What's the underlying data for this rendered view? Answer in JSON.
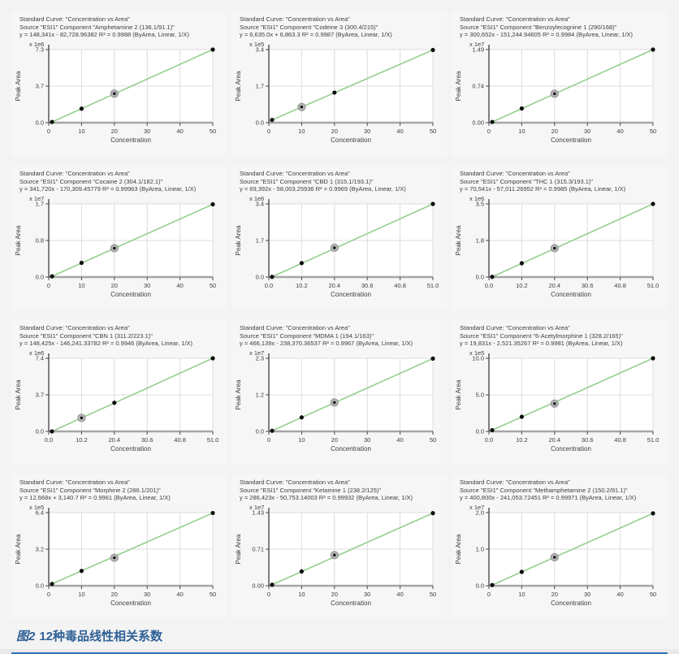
{
  "page": {
    "caption_prefix": "图2",
    "caption_text": "12种毒品线性相关系数",
    "caption_color": "#2e6096",
    "divider_color": "#2e74b5"
  },
  "common": {
    "title_line": "Standard Curve: \"Concentration vs Area\"",
    "source_prefix": "Source \"ESI1\" Component ",
    "r2_label": "R²",
    "fit_suffix": "(ByArea, Linear, 1/X)",
    "ylabel": "Peak Area",
    "xlabel": "Concentration",
    "line_color": "#94cf8e",
    "point_color": "#0d0d0d",
    "highlight_fill": "#b5b5b5",
    "highlight_stroke": "#8f8f8f",
    "grid_color": "#dcdcdc",
    "axis_color": "#4a4a4a",
    "xaxis_color": "#a6a6a6",
    "tick_text_color": "#3d3d3d"
  },
  "chart_data": {
    "type": "scatter",
    "title": "Standard curves: Concentration vs Peak Area, 12 drug components",
    "xlabel": "Concentration",
    "ylabel": "Peak Area",
    "legend": "none",
    "grid": true,
    "charts": [
      {
        "component": "Amphetamine 2 (136.1/91.1)",
        "equation": "y = 148,341x - 82,728.96382",
        "r2": "0.9988",
        "scale": "x 1e6",
        "y_ticks": [
          "0.0",
          "3.7",
          "7.3"
        ],
        "y_max": 7.3,
        "x_ticks": [
          "0",
          "10",
          "20",
          "30",
          "40",
          "50"
        ],
        "x_max": 50,
        "x": [
          1,
          10,
          20,
          50
        ],
        "y": [
          0.07,
          1.4,
          2.9,
          7.3
        ],
        "highlight_index": 2
      },
      {
        "component": "Codeine 3 (300.4/215)",
        "equation": "y = 6,635.0x + 6,863.3",
        "r2": "0.9987",
        "scale": "x 1e5",
        "y_ticks": [
          "0.0",
          "1.7",
          "3.4"
        ],
        "y_max": 3.4,
        "x_ticks": [
          "0",
          "10",
          "20",
          "30",
          "40",
          "50"
        ],
        "x_max": 50,
        "x": [
          1,
          10,
          20,
          50
        ],
        "y": [
          0.13,
          0.73,
          1.4,
          3.38
        ],
        "highlight_index": 1
      },
      {
        "component": "Benzoylecognine 1 (290/168)",
        "equation": "y = 300,652x - 151,244.94605",
        "r2": "0.9984",
        "scale": "x 1e7",
        "y_ticks": [
          "0.00",
          "0.74",
          "1.49"
        ],
        "y_max": 1.49,
        "x_ticks": [
          "0",
          "10",
          "20",
          "30",
          "40",
          "50"
        ],
        "x_max": 50,
        "x": [
          1,
          10,
          20,
          50
        ],
        "y": [
          0.015,
          0.29,
          0.59,
          1.49
        ],
        "highlight_index": 2
      },
      {
        "component": "Cocaine 2 (304.1/182.1)",
        "equation": "y = 341,720x - 170,309.45779",
        "r2": "0.99963",
        "scale": "x 1e7",
        "y_ticks": [
          "0.0",
          "0.8",
          "1.7"
        ],
        "y_max": 1.7,
        "x_ticks": [
          "0",
          "10",
          "20",
          "30",
          "40",
          "50"
        ],
        "x_max": 50,
        "x": [
          1,
          10,
          20,
          50
        ],
        "y": [
          0.017,
          0.33,
          0.67,
          1.69
        ],
        "highlight_index": 2
      },
      {
        "component": "CBD 1 (315.1/193.1)",
        "equation": "y = 69,392x - 58,003.25936",
        "r2": "0.9969",
        "scale": "x 1e6",
        "y_ticks": [
          "0.0",
          "1.7",
          "3.4"
        ],
        "y_max": 3.4,
        "x_ticks": [
          "0.0",
          "10.2",
          "20.4",
          "30.6",
          "40.8",
          "51.0"
        ],
        "x_max": 51,
        "x": [
          1,
          10.2,
          20.4,
          51
        ],
        "y": [
          0.01,
          0.65,
          1.36,
          3.4
        ],
        "highlight_index": 2
      },
      {
        "component": "THC 1 (315.3/193.1)",
        "equation": "y = 70,541x - 57,011.26952",
        "r2": "0.9985",
        "scale": "x 1e6",
        "y_ticks": [
          "0.0",
          "1.8",
          "3.5"
        ],
        "y_max": 3.5,
        "x_ticks": [
          "0.0",
          "10.2",
          "20.4",
          "30.6",
          "40.8",
          "51.0"
        ],
        "x_max": 51,
        "x": [
          1,
          10.2,
          20.4,
          51
        ],
        "y": [
          0.01,
          0.66,
          1.38,
          3.5
        ],
        "highlight_index": 2
      },
      {
        "component": "CBN 1 (311.2/223.1)",
        "equation": "y = 148,425x - 146,241.33782",
        "r2": "0.9946",
        "scale": "x 1e6",
        "y_ticks": [
          "0.0",
          "3.7",
          "7.4"
        ],
        "y_max": 7.4,
        "x_ticks": [
          "0.0",
          "10.2",
          "20.4",
          "30.6",
          "40.8",
          "51.0"
        ],
        "x_max": 51,
        "x": [
          1,
          10.2,
          20.4,
          51
        ],
        "y": [
          0.0,
          1.37,
          2.9,
          7.4
        ],
        "highlight_index": 1
      },
      {
        "component": "MDMA 1 (194.1/163)",
        "equation": "y = 466,139x - 238,370.36537",
        "r2": "0.9967",
        "scale": "x 1e7",
        "y_ticks": [
          "0.0",
          "1.2",
          "2.3"
        ],
        "y_max": 2.3,
        "x_ticks": [
          "0",
          "10",
          "20",
          "30",
          "40",
          "50"
        ],
        "x_max": 50,
        "x": [
          1,
          10,
          20,
          50
        ],
        "y": [
          0.02,
          0.44,
          0.91,
          2.29
        ],
        "highlight_index": 2
      },
      {
        "component": "6-Acetylmorphine 1 (328.2/165)",
        "equation": "y = 19,831x - 2,521.35267",
        "r2": "0.9981",
        "scale": "x 1e5",
        "y_ticks": [
          "0.0",
          "5.0",
          "10.0"
        ],
        "y_max": 10.0,
        "x_ticks": [
          "0.0",
          "10.2",
          "20.4",
          "30.6",
          "40.8",
          "51.0"
        ],
        "x_max": 51,
        "x": [
          1,
          10.2,
          20.4,
          51
        ],
        "y": [
          0.17,
          2.0,
          3.8,
          10.0
        ],
        "highlight_index": 2
      },
      {
        "component": "Morphine 2 (286.1/201)",
        "equation": "y = 12,668x + 3,140.7",
        "r2": "0.9961",
        "scale": "x 1e5",
        "y_ticks": [
          "0.0",
          "3.2",
          "6.4"
        ],
        "y_max": 6.4,
        "x_ticks": [
          "0",
          "10",
          "20",
          "30",
          "40",
          "50"
        ],
        "x_max": 50,
        "x": [
          1,
          10,
          20,
          50
        ],
        "y": [
          0.16,
          1.3,
          2.45,
          6.37
        ],
        "highlight_index": 2
      },
      {
        "component": "Ketamine 1 (238.2/125)",
        "equation": "y = 286,423x - 50,753.14003",
        "r2": "0.99932",
        "scale": "x 1e7",
        "y_ticks": [
          "0.00",
          "0.71",
          "1.43"
        ],
        "y_max": 1.43,
        "x_ticks": [
          "0",
          "10",
          "20",
          "30",
          "40",
          "50"
        ],
        "x_max": 50,
        "x": [
          1,
          10,
          20,
          50
        ],
        "y": [
          0.02,
          0.28,
          0.6,
          1.42
        ],
        "highlight_index": 2
      },
      {
        "component": "Methamphetamine 2 (150.2/91.1)",
        "equation": "y = 400,800x - 241,053.72451",
        "r2": "0.99971",
        "scale": "x 1e7",
        "y_ticks": [
          "0.0",
          "1.0",
          "2.0"
        ],
        "y_max": 2.0,
        "x_ticks": [
          "0",
          "10",
          "20",
          "30",
          "40",
          "50"
        ],
        "x_max": 50,
        "x": [
          1,
          10,
          20,
          50
        ],
        "y": [
          0.02,
          0.38,
          0.78,
          1.98
        ],
        "highlight_index": 2
      }
    ]
  }
}
